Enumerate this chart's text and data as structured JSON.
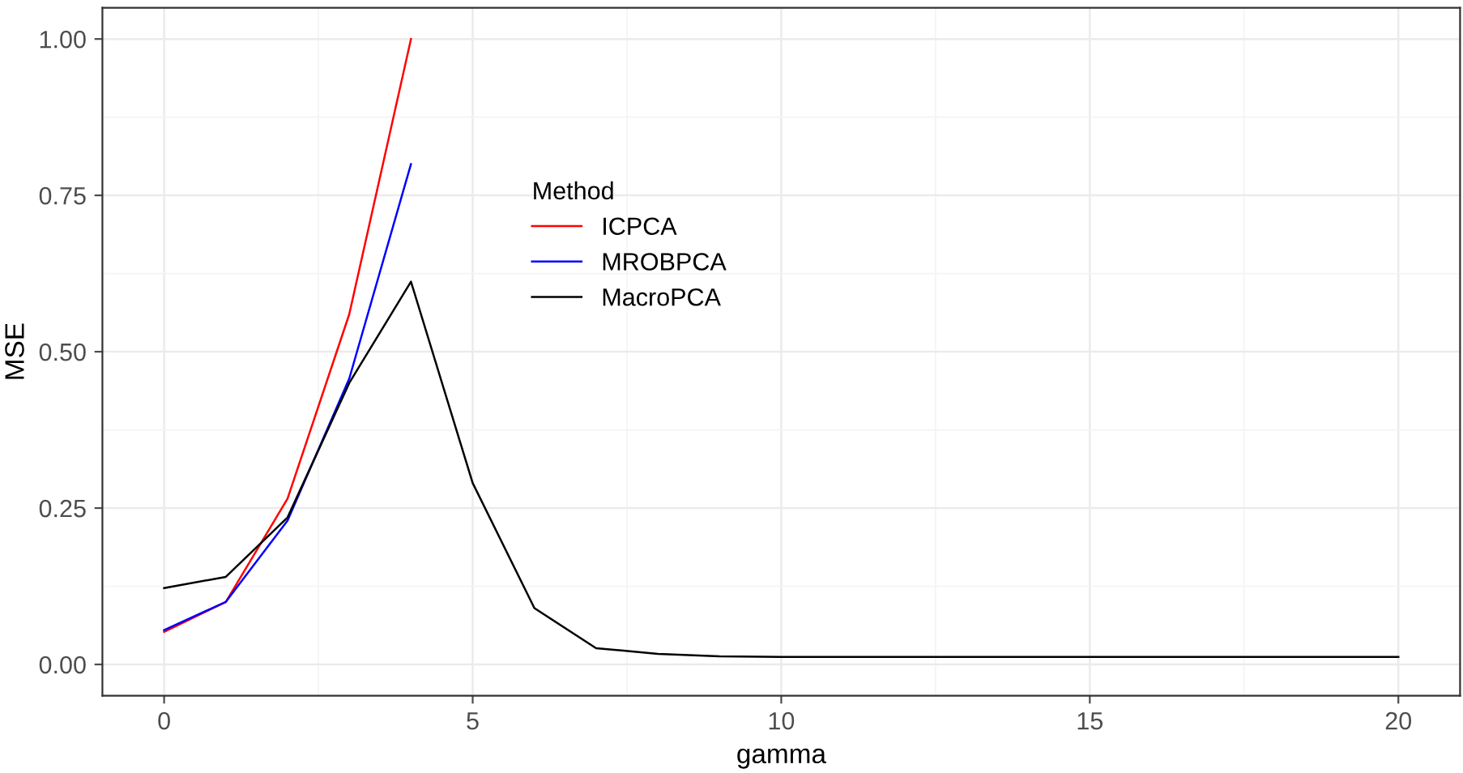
{
  "chart_data": {
    "type": "line",
    "xlabel": "gamma",
    "ylabel": "MSE",
    "legend_title": "Method",
    "legend": "top",
    "xlim": [
      -1,
      21
    ],
    "ylim": [
      -0.05,
      1.05
    ],
    "xticks": [
      0,
      {
        "value": 2.5,
        "label": null
      },
      5,
      {
        "value": 7.5,
        "label": null
      },
      10,
      {
        "value": 12.5,
        "label": null
      },
      15,
      {
        "value": 17.5,
        "label": null
      },
      20
    ],
    "yticks": [
      {
        "value": 0,
        "label": "0.00"
      },
      {
        "value": 0.125,
        "label": null
      },
      {
        "value": 0.25,
        "label": "0.25"
      },
      {
        "value": 0.375,
        "label": null
      },
      {
        "value": 0.5,
        "label": "0.50"
      },
      {
        "value": 0.625,
        "label": null
      },
      {
        "value": 0.75,
        "label": "0.75"
      },
      {
        "value": 0.875,
        "label": null
      },
      {
        "value": 1,
        "label": "1.00"
      }
    ],
    "grid": true,
    "series": [
      {
        "name": "ICPCA",
        "color": "#ff0000",
        "x": [
          0,
          1,
          2,
          3,
          4
        ],
        "values": [
          0.052,
          0.1,
          0.265,
          0.56,
          1.0
        ]
      },
      {
        "name": "MROBPCA",
        "color": "#0000ff",
        "x": [
          0,
          1,
          2,
          3,
          4
        ],
        "values": [
          0.055,
          0.1,
          0.23,
          0.457,
          0.8
        ]
      },
      {
        "name": "MacroPCA",
        "color": "#000000",
        "x": [
          0,
          1,
          2,
          3,
          4,
          5,
          6,
          7,
          8,
          9,
          10,
          11,
          12,
          13,
          14,
          15,
          16,
          17,
          18,
          19,
          20
        ],
        "values": [
          0.122,
          0.14,
          0.235,
          0.45,
          0.612,
          0.29,
          0.09,
          0.026,
          0.017,
          0.013,
          0.012,
          0.012,
          0.012,
          0.012,
          0.012,
          0.012,
          0.012,
          0.012,
          0.012,
          0.012,
          0.012
        ]
      }
    ]
  }
}
